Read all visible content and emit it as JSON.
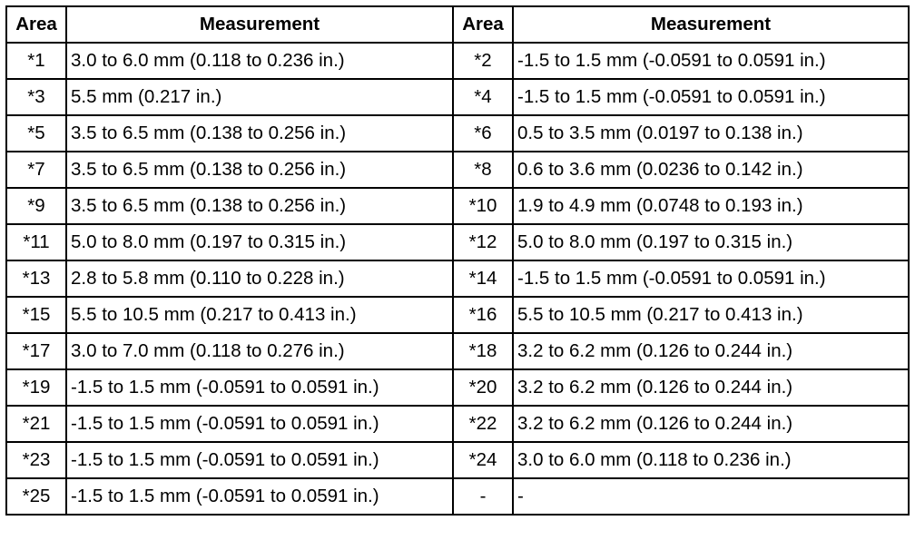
{
  "table": {
    "header": [
      "Area",
      "Measurement",
      "Area",
      "Measurement"
    ],
    "rows": [
      [
        "*1",
        "3.0 to 6.0 mm (0.118 to 0.236 in.)",
        "*2",
        "-1.5 to 1.5 mm (-0.0591 to 0.0591 in.)"
      ],
      [
        "*3",
        "5.5 mm (0.217 in.)",
        "*4",
        "-1.5 to 1.5 mm (-0.0591 to 0.0591 in.)"
      ],
      [
        "*5",
        "3.5 to 6.5 mm (0.138 to 0.256 in.)",
        "*6",
        "0.5 to 3.5 mm (0.0197 to 0.138 in.)"
      ],
      [
        "*7",
        "3.5 to 6.5 mm (0.138 to 0.256 in.)",
        "*8",
        "0.6 to 3.6 mm (0.0236 to 0.142 in.)"
      ],
      [
        "*9",
        "3.5 to 6.5 mm (0.138 to 0.256 in.)",
        "*10",
        "1.9 to 4.9 mm (0.0748 to 0.193 in.)"
      ],
      [
        "*11",
        "5.0 to 8.0 mm (0.197 to 0.315 in.)",
        "*12",
        "5.0 to 8.0 mm (0.197 to 0.315 in.)"
      ],
      [
        "*13",
        "2.8 to 5.8 mm (0.110 to 0.228 in.)",
        "*14",
        "-1.5 to 1.5 mm (-0.0591 to 0.0591 in.)"
      ],
      [
        "*15",
        "5.5 to 10.5 mm (0.217 to 0.413 in.)",
        "*16",
        "5.5 to 10.5 mm (0.217 to 0.413 in.)"
      ],
      [
        "*17",
        "3.0 to 7.0 mm (0.118 to 0.276 in.)",
        "*18",
        "3.2 to 6.2 mm (0.126 to 0.244 in.)"
      ],
      [
        "*19",
        "-1.5 to 1.5 mm (-0.0591 to 0.0591 in.)",
        "*20",
        "3.2 to 6.2 mm (0.126 to 0.244 in.)"
      ],
      [
        "*21",
        "-1.5 to 1.5 mm (-0.0591 to 0.0591 in.)",
        "*22",
        "3.2 to 6.2 mm (0.126 to 0.244 in.)"
      ],
      [
        "*23",
        "-1.5 to 1.5 mm (-0.0591 to 0.0591 in.)",
        "*24",
        "3.0 to 6.0 mm (0.118 to 0.236 in.)"
      ],
      [
        "*25",
        "-1.5 to 1.5 mm (-0.0591 to 0.0591 in.)",
        "-",
        "-"
      ]
    ]
  }
}
